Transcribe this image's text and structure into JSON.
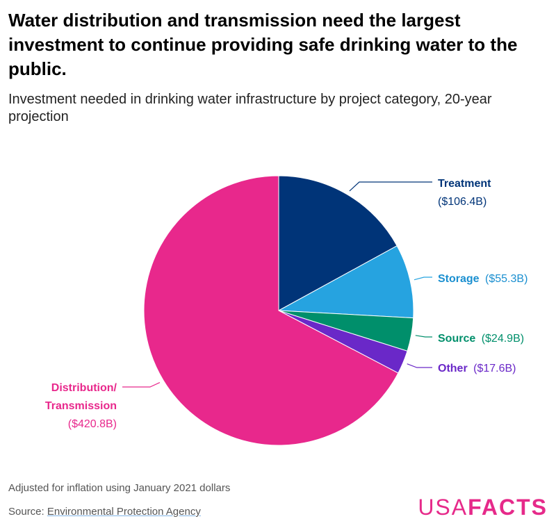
{
  "title": "Water distribution and transmission need the largest investment to continue providing safe drinking water to the public.",
  "subtitle": "Investment needed in drinking water infrastructure by project category, 20-year projection",
  "chart_data": {
    "type": "pie",
    "unit": "billion dollars",
    "slices": [
      {
        "name": "Treatment",
        "label_line1": "Treatment",
        "label_line2": "($106.4B)",
        "value": 106.4,
        "color": "#003478"
      },
      {
        "name": "Storage",
        "label_line1": "Storage",
        "value_text": "($55.3B)",
        "value": 55.3,
        "color": "#26a3e0"
      },
      {
        "name": "Source",
        "label_line1": "Source",
        "value_text": "($24.9B)",
        "value": 24.9,
        "color": "#008f6b"
      },
      {
        "name": "Other",
        "label_line1": "Other",
        "value_text": "($17.6B)",
        "value": 17.6,
        "color": "#6a28c8"
      },
      {
        "name": "Distribution/ Transmission",
        "label_line1": "Distribution/",
        "label_line2": "Transmission",
        "label_line3": "($420.8B)",
        "value": 420.8,
        "color": "#e8288c"
      }
    ]
  },
  "footer": {
    "note": "Adjusted for inflation using January 2021 dollars",
    "source_prefix": "Source: ",
    "source_link": "Environmental Protection Agency",
    "logo_usa": "USA",
    "logo_facts": "FACTS"
  }
}
